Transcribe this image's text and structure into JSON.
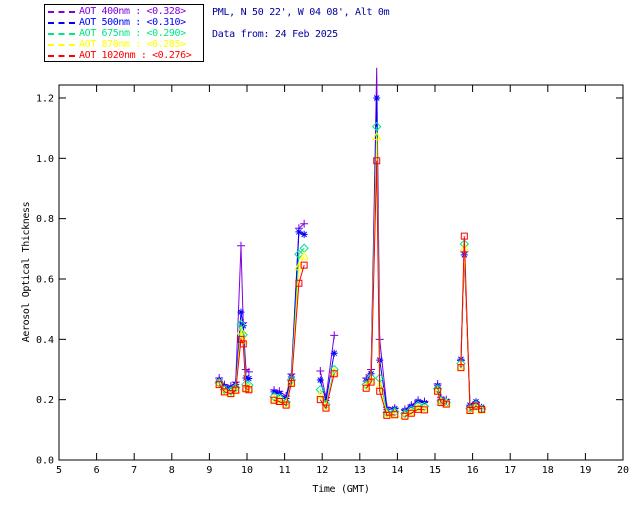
{
  "header": {
    "line1": "PML, N 50 22', W 04 08', Alt 0m",
    "line2": "Data from: 24 Feb 2025",
    "color": "#0000a0"
  },
  "legend": {
    "entries": [
      {
        "label": "AOT  400nm : <0.328>",
        "mean": "<0.328>",
        "color": "#8200dc",
        "marker": "plus"
      },
      {
        "label": "AOT  500nm : <0.310>",
        "mean": "<0.310>",
        "color": "#0000ff",
        "marker": "asterisk"
      },
      {
        "label": "AOT  675nm : <0.290>",
        "mean": "<0.290>",
        "color": "#00e687",
        "marker": "diamond"
      },
      {
        "label": "AOT  870nm : <0.285>",
        "mean": "<0.285>",
        "color": "#ffff00",
        "marker": "triangle"
      },
      {
        "label": "AOT 1020nm : <0.276>",
        "mean": "<0.276>",
        "color": "#ff0000",
        "marker": "square"
      }
    ]
  },
  "chart_data": {
    "type": "line",
    "title": "",
    "xlabel": "Time (GMT)",
    "ylabel": "Aerosol Optical Thickness",
    "xlim": [
      5,
      20
    ],
    "ylim": [
      0.0,
      1.243
    ],
    "xticks": [
      5,
      6,
      7,
      8,
      9,
      10,
      11,
      12,
      13,
      14,
      15,
      16,
      17,
      18,
      19,
      20
    ],
    "yticks": [
      "0.0",
      "0.2",
      "0.4",
      "0.6",
      "0.8",
      "1.0",
      "1.2"
    ],
    "grid": false,
    "legend_position": "top-left-outside",
    "marker_clip": 1.25,
    "series": [
      {
        "name": "AOT 400nm",
        "mean": "<0.328>",
        "color": "#8200dc",
        "marker": "plus",
        "segments": [
          [
            [
              9.26,
              0.272
            ],
            [
              9.4,
              0.25
            ],
            [
              9.57,
              0.245
            ],
            [
              9.7,
              0.258
            ],
            [
              9.84,
              0.71
            ],
            [
              9.9,
              0.455
            ],
            [
              9.97,
              0.3
            ],
            [
              10.05,
              0.292
            ]
          ],
          [
            [
              10.72,
              0.232
            ],
            [
              10.86,
              0.228
            ],
            [
              11.04,
              0.212
            ],
            [
              11.18,
              0.285
            ],
            [
              11.38,
              0.768
            ],
            [
              11.52,
              0.783
            ]
          ],
          [
            [
              11.95,
              0.295
            ],
            [
              12.1,
              0.207
            ],
            [
              12.32,
              0.413
            ]
          ],
          [
            [
              13.17,
              0.272
            ],
            [
              13.3,
              0.3
            ],
            [
              13.45,
              1.3
            ],
            [
              13.53,
              0.4
            ],
            [
              13.72,
              0.175
            ],
            [
              13.93,
              0.172
            ]
          ],
          [
            [
              14.2,
              0.168
            ],
            [
              14.37,
              0.182
            ],
            [
              14.55,
              0.198
            ],
            [
              14.72,
              0.194
            ]
          ],
          [
            [
              15.07,
              0.252
            ],
            [
              15.16,
              0.208
            ],
            [
              15.3,
              0.2
            ]
          ],
          [
            [
              15.69,
              0.33
            ],
            [
              15.78,
              0.69
            ],
            [
              15.93,
              0.178
            ],
            [
              16.09,
              0.19
            ],
            [
              16.24,
              0.172
            ]
          ]
        ]
      },
      {
        "name": "AOT 500nm",
        "mean": "<0.310>",
        "color": "#0000ff",
        "marker": "asterisk",
        "segments": [
          [
            [
              9.26,
              0.265
            ],
            [
              9.4,
              0.243
            ],
            [
              9.57,
              0.238
            ],
            [
              9.7,
              0.25
            ],
            [
              9.84,
              0.49
            ],
            [
              9.9,
              0.445
            ],
            [
              9.97,
              0.272
            ],
            [
              10.05,
              0.27
            ]
          ],
          [
            [
              10.72,
              0.226
            ],
            [
              10.86,
              0.22
            ],
            [
              11.04,
              0.204
            ],
            [
              11.18,
              0.275
            ],
            [
              11.38,
              0.756
            ],
            [
              11.52,
              0.748
            ]
          ],
          [
            [
              11.95,
              0.265
            ],
            [
              12.1,
              0.197
            ],
            [
              12.32,
              0.354
            ]
          ],
          [
            [
              13.17,
              0.262
            ],
            [
              13.3,
              0.286
            ],
            [
              13.45,
              1.2
            ],
            [
              13.53,
              0.331
            ],
            [
              13.72,
              0.168
            ],
            [
              13.93,
              0.17
            ]
          ],
          [
            [
              14.2,
              0.164
            ],
            [
              14.37,
              0.178
            ],
            [
              14.55,
              0.194
            ],
            [
              14.72,
              0.19
            ]
          ],
          [
            [
              15.07,
              0.246
            ],
            [
              15.16,
              0.202
            ],
            [
              15.3,
              0.195
            ]
          ],
          [
            [
              15.69,
              0.334
            ],
            [
              15.78,
              0.68
            ],
            [
              15.93,
              0.182
            ],
            [
              16.09,
              0.193
            ],
            [
              16.24,
              0.175
            ]
          ]
        ]
      },
      {
        "name": "AOT 675nm",
        "mean": "<0.290>",
        "color": "#00e687",
        "marker": "diamond",
        "segments": [
          [
            [
              9.26,
              0.256
            ],
            [
              9.4,
              0.233
            ],
            [
              9.57,
              0.228
            ],
            [
              9.7,
              0.24
            ],
            [
              9.84,
              0.45
            ],
            [
              9.9,
              0.415
            ],
            [
              9.97,
              0.25
            ],
            [
              10.05,
              0.248
            ]
          ],
          [
            [
              10.72,
              0.21
            ],
            [
              10.86,
              0.206
            ],
            [
              11.04,
              0.192
            ],
            [
              11.18,
              0.265
            ],
            [
              11.38,
              0.682
            ],
            [
              11.52,
              0.702
            ]
          ],
          [
            [
              11.95,
              0.233
            ],
            [
              12.1,
              0.184
            ],
            [
              12.32,
              0.3
            ]
          ],
          [
            [
              13.17,
              0.25
            ],
            [
              13.3,
              0.272
            ],
            [
              13.45,
              1.105
            ],
            [
              13.53,
              0.271
            ],
            [
              13.72,
              0.158
            ],
            [
              13.93,
              0.16
            ]
          ],
          [
            [
              14.2,
              0.154
            ],
            [
              14.37,
              0.166
            ],
            [
              14.55,
              0.181
            ],
            [
              14.72,
              0.178
            ]
          ],
          [
            [
              15.07,
              0.236
            ],
            [
              15.16,
              0.196
            ],
            [
              15.3,
              0.19
            ]
          ],
          [
            [
              15.69,
              0.32
            ],
            [
              15.78,
              0.716
            ],
            [
              15.93,
              0.17
            ],
            [
              16.09,
              0.182
            ],
            [
              16.24,
              0.168
            ]
          ]
        ]
      },
      {
        "name": "AOT 870nm",
        "mean": "<0.285>",
        "color": "#ffff00",
        "marker": "triangle",
        "segments": [
          [
            [
              9.26,
              0.251
            ],
            [
              9.4,
              0.228
            ],
            [
              9.57,
              0.222
            ],
            [
              9.7,
              0.234
            ],
            [
              9.84,
              0.428
            ],
            [
              9.9,
              0.398
            ],
            [
              9.97,
              0.24
            ],
            [
              10.05,
              0.238
            ]
          ],
          [
            [
              10.72,
              0.203
            ],
            [
              10.86,
              0.198
            ],
            [
              11.04,
              0.186
            ],
            [
              11.18,
              0.258
            ],
            [
              11.38,
              0.64
            ],
            [
              11.52,
              0.676
            ]
          ],
          [
            [
              11.95,
              0.215
            ],
            [
              12.1,
              0.177
            ],
            [
              12.32,
              0.292
            ]
          ],
          [
            [
              13.17,
              0.244
            ],
            [
              13.3,
              0.264
            ],
            [
              13.45,
              1.072
            ],
            [
              13.53,
              0.246
            ],
            [
              13.72,
              0.152
            ],
            [
              13.93,
              0.154
            ]
          ],
          [
            [
              14.2,
              0.148
            ],
            [
              14.37,
              0.158
            ],
            [
              14.55,
              0.173
            ],
            [
              14.72,
              0.17
            ]
          ],
          [
            [
              15.07,
              0.23
            ],
            [
              15.16,
              0.192
            ],
            [
              15.3,
              0.187
            ]
          ],
          [
            [
              15.69,
              0.312
            ],
            [
              15.78,
              0.704
            ],
            [
              15.93,
              0.166
            ],
            [
              16.09,
              0.176
            ],
            [
              16.24,
              0.166
            ]
          ]
        ]
      },
      {
        "name": "AOT 1020nm",
        "mean": "<0.276>",
        "color": "#ff0000",
        "marker": "square",
        "segments": [
          [
            [
              9.26,
              0.25
            ],
            [
              9.4,
              0.226
            ],
            [
              9.57,
              0.22
            ],
            [
              9.7,
              0.231
            ],
            [
              9.84,
              0.4
            ],
            [
              9.9,
              0.385
            ],
            [
              9.97,
              0.236
            ],
            [
              10.05,
              0.233
            ]
          ],
          [
            [
              10.72,
              0.198
            ],
            [
              10.86,
              0.194
            ],
            [
              11.04,
              0.182
            ],
            [
              11.18,
              0.254
            ],
            [
              11.38,
              0.586
            ],
            [
              11.52,
              0.646
            ]
          ],
          [
            [
              11.95,
              0.2
            ],
            [
              12.1,
              0.172
            ],
            [
              12.32,
              0.286
            ]
          ],
          [
            [
              13.17,
              0.238
            ],
            [
              13.3,
              0.258
            ],
            [
              13.45,
              0.992
            ],
            [
              13.53,
              0.228
            ],
            [
              13.72,
              0.148
            ],
            [
              13.93,
              0.15
            ]
          ],
          [
            [
              14.2,
              0.145
            ],
            [
              14.37,
              0.155
            ],
            [
              14.55,
              0.168
            ],
            [
              14.72,
              0.166
            ]
          ],
          [
            [
              15.07,
              0.228
            ],
            [
              15.16,
              0.19
            ],
            [
              15.3,
              0.185
            ]
          ],
          [
            [
              15.69,
              0.306
            ],
            [
              15.78,
              0.742
            ],
            [
              15.93,
              0.164
            ],
            [
              16.09,
              0.178
            ],
            [
              16.24,
              0.168
            ]
          ]
        ]
      }
    ]
  }
}
